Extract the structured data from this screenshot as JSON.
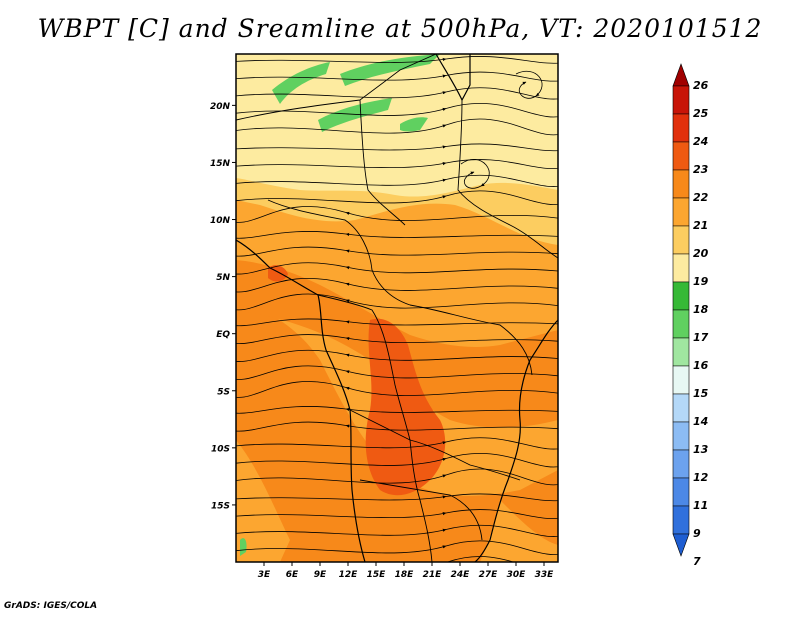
{
  "title": "WBPT [C] and Sreamline at 500hPa, VT: 2020101512",
  "footer": "GrADS: IGES/COLA",
  "map": {
    "lat_labels": [
      "20N",
      "15N",
      "10N",
      "5N",
      "EQ",
      "5S",
      "10S",
      "15S"
    ],
    "lat_values": [
      20,
      15,
      10,
      5,
      0,
      -5,
      -10,
      -15
    ],
    "lon_labels": [
      "3E",
      "6E",
      "9E",
      "12E",
      "15E",
      "18E",
      "21E",
      "24E",
      "27E",
      "30E",
      "33E"
    ],
    "lon_values": [
      3,
      6,
      9,
      12,
      15,
      18,
      21,
      24,
      27,
      30,
      33
    ],
    "lon_range": [
      0,
      34.5
    ],
    "lat_range": [
      -20,
      24.5
    ]
  },
  "colorbar": {
    "labels": [
      "26",
      "25",
      "24",
      "23",
      "22",
      "21",
      "20",
      "19",
      "18",
      "17",
      "16",
      "15",
      "14",
      "13",
      "12",
      "11",
      "9",
      "7"
    ],
    "colors": [
      "#a00000",
      "#c81408",
      "#e1300c",
      "#ef5a12",
      "#f7891a",
      "#fca630",
      "#fccd60",
      "#fdeba0",
      "#36b936",
      "#60d060",
      "#a0e6a0",
      "#e8f8f4",
      "#b4d8f8",
      "#8cbcf4",
      "#6ca2ee",
      "#4c88e6",
      "#3070dc",
      "#1e5ed2"
    ]
  }
}
